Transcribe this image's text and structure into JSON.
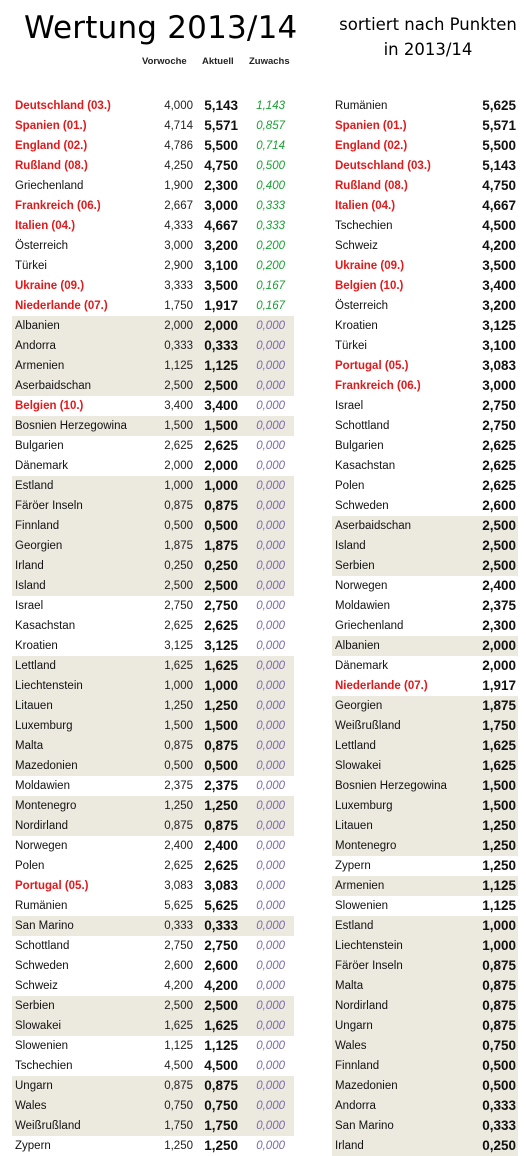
{
  "title": "Wertung 2013/14",
  "subtitle": "sortiert nach Punkten in 2013/14",
  "columns": {
    "vorwoche": "Vorwoche",
    "aktuell": "Aktuell",
    "zuwachs": "Zuwachs"
  },
  "left_table": [
    {
      "country": "Deutschland (03.)",
      "vorwoche": "4,000",
      "aktuell": "5,143",
      "zuwachs": "1,143",
      "red": true,
      "shade": false
    },
    {
      "country": "Spanien (01.)",
      "vorwoche": "4,714",
      "aktuell": "5,571",
      "zuwachs": "0,857",
      "red": true,
      "shade": false
    },
    {
      "country": "England (02.)",
      "vorwoche": "4,786",
      "aktuell": "5,500",
      "zuwachs": "0,714",
      "red": true,
      "shade": false
    },
    {
      "country": "Rußland (08.)",
      "vorwoche": "4,250",
      "aktuell": "4,750",
      "zuwachs": "0,500",
      "red": true,
      "shade": false
    },
    {
      "country": "Griechenland",
      "vorwoche": "1,900",
      "aktuell": "2,300",
      "zuwachs": "0,400",
      "red": false,
      "shade": false
    },
    {
      "country": "Frankreich (06.)",
      "vorwoche": "2,667",
      "aktuell": "3,000",
      "zuwachs": "0,333",
      "red": true,
      "shade": false
    },
    {
      "country": "Italien (04.)",
      "vorwoche": "4,333",
      "aktuell": "4,667",
      "zuwachs": "0,333",
      "red": true,
      "shade": false
    },
    {
      "country": "Österreich",
      "vorwoche": "3,000",
      "aktuell": "3,200",
      "zuwachs": "0,200",
      "red": false,
      "shade": false
    },
    {
      "country": "Türkei",
      "vorwoche": "2,900",
      "aktuell": "3,100",
      "zuwachs": "0,200",
      "red": false,
      "shade": false
    },
    {
      "country": "Ukraine (09.)",
      "vorwoche": "3,333",
      "aktuell": "3,500",
      "zuwachs": "0,167",
      "red": true,
      "shade": false
    },
    {
      "country": "Niederlande (07.)",
      "vorwoche": "1,750",
      "aktuell": "1,917",
      "zuwachs": "0,167",
      "red": true,
      "shade": false
    },
    {
      "country": "Albanien",
      "vorwoche": "2,000",
      "aktuell": "2,000",
      "zuwachs": "0,000",
      "red": false,
      "shade": true
    },
    {
      "country": "Andorra",
      "vorwoche": "0,333",
      "aktuell": "0,333",
      "zuwachs": "0,000",
      "red": false,
      "shade": true
    },
    {
      "country": "Armenien",
      "vorwoche": "1,125",
      "aktuell": "1,125",
      "zuwachs": "0,000",
      "red": false,
      "shade": true
    },
    {
      "country": "Aserbaidschan",
      "vorwoche": "2,500",
      "aktuell": "2,500",
      "zuwachs": "0,000",
      "red": false,
      "shade": true
    },
    {
      "country": "Belgien (10.)",
      "vorwoche": "3,400",
      "aktuell": "3,400",
      "zuwachs": "0,000",
      "red": true,
      "shade": false
    },
    {
      "country": "Bosnien Herzegowina",
      "vorwoche": "1,500",
      "aktuell": "1,500",
      "zuwachs": "0,000",
      "red": false,
      "shade": true
    },
    {
      "country": "Bulgarien",
      "vorwoche": "2,625",
      "aktuell": "2,625",
      "zuwachs": "0,000",
      "red": false,
      "shade": false
    },
    {
      "country": "Dänemark",
      "vorwoche": "2,000",
      "aktuell": "2,000",
      "zuwachs": "0,000",
      "red": false,
      "shade": false
    },
    {
      "country": "Estland",
      "vorwoche": "1,000",
      "aktuell": "1,000",
      "zuwachs": "0,000",
      "red": false,
      "shade": true
    },
    {
      "country": "Färöer Inseln",
      "vorwoche": "0,875",
      "aktuell": "0,875",
      "zuwachs": "0,000",
      "red": false,
      "shade": true
    },
    {
      "country": "Finnland",
      "vorwoche": "0,500",
      "aktuell": "0,500",
      "zuwachs": "0,000",
      "red": false,
      "shade": true
    },
    {
      "country": "Georgien",
      "vorwoche": "1,875",
      "aktuell": "1,875",
      "zuwachs": "0,000",
      "red": false,
      "shade": true
    },
    {
      "country": "Irland",
      "vorwoche": "0,250",
      "aktuell": "0,250",
      "zuwachs": "0,000",
      "red": false,
      "shade": true
    },
    {
      "country": "Island",
      "vorwoche": "2,500",
      "aktuell": "2,500",
      "zuwachs": "0,000",
      "red": false,
      "shade": true
    },
    {
      "country": "Israel",
      "vorwoche": "2,750",
      "aktuell": "2,750",
      "zuwachs": "0,000",
      "red": false,
      "shade": false
    },
    {
      "country": "Kasachstan",
      "vorwoche": "2,625",
      "aktuell": "2,625",
      "zuwachs": "0,000",
      "red": false,
      "shade": false
    },
    {
      "country": "Kroatien",
      "vorwoche": "3,125",
      "aktuell": "3,125",
      "zuwachs": "0,000",
      "red": false,
      "shade": false
    },
    {
      "country": "Lettland",
      "vorwoche": "1,625",
      "aktuell": "1,625",
      "zuwachs": "0,000",
      "red": false,
      "shade": true
    },
    {
      "country": "Liechtenstein",
      "vorwoche": "1,000",
      "aktuell": "1,000",
      "zuwachs": "0,000",
      "red": false,
      "shade": true
    },
    {
      "country": "Litauen",
      "vorwoche": "1,250",
      "aktuell": "1,250",
      "zuwachs": "0,000",
      "red": false,
      "shade": true
    },
    {
      "country": "Luxemburg",
      "vorwoche": "1,500",
      "aktuell": "1,500",
      "zuwachs": "0,000",
      "red": false,
      "shade": true
    },
    {
      "country": "Malta",
      "vorwoche": "0,875",
      "aktuell": "0,875",
      "zuwachs": "0,000",
      "red": false,
      "shade": true
    },
    {
      "country": "Mazedonien",
      "vorwoche": "0,500",
      "aktuell": "0,500",
      "zuwachs": "0,000",
      "red": false,
      "shade": true
    },
    {
      "country": "Moldawien",
      "vorwoche": "2,375",
      "aktuell": "2,375",
      "zuwachs": "0,000",
      "red": false,
      "shade": false
    },
    {
      "country": "Montenegro",
      "vorwoche": "1,250",
      "aktuell": "1,250",
      "zuwachs": "0,000",
      "red": false,
      "shade": true
    },
    {
      "country": "Nordirland",
      "vorwoche": "0,875",
      "aktuell": "0,875",
      "zuwachs": "0,000",
      "red": false,
      "shade": true
    },
    {
      "country": "Norwegen",
      "vorwoche": "2,400",
      "aktuell": "2,400",
      "zuwachs": "0,000",
      "red": false,
      "shade": false
    },
    {
      "country": "Polen",
      "vorwoche": "2,625",
      "aktuell": "2,625",
      "zuwachs": "0,000",
      "red": false,
      "shade": false
    },
    {
      "country": "Portugal (05.)",
      "vorwoche": "3,083",
      "aktuell": "3,083",
      "zuwachs": "0,000",
      "red": true,
      "shade": false
    },
    {
      "country": "Rumänien",
      "vorwoche": "5,625",
      "aktuell": "5,625",
      "zuwachs": "0,000",
      "red": false,
      "shade": false
    },
    {
      "country": "San Marino",
      "vorwoche": "0,333",
      "aktuell": "0,333",
      "zuwachs": "0,000",
      "red": false,
      "shade": true
    },
    {
      "country": "Schottland",
      "vorwoche": "2,750",
      "aktuell": "2,750",
      "zuwachs": "0,000",
      "red": false,
      "shade": false
    },
    {
      "country": "Schweden",
      "vorwoche": "2,600",
      "aktuell": "2,600",
      "zuwachs": "0,000",
      "red": false,
      "shade": false
    },
    {
      "country": "Schweiz",
      "vorwoche": "4,200",
      "aktuell": "4,200",
      "zuwachs": "0,000",
      "red": false,
      "shade": false
    },
    {
      "country": "Serbien",
      "vorwoche": "2,500",
      "aktuell": "2,500",
      "zuwachs": "0,000",
      "red": false,
      "shade": true
    },
    {
      "country": "Slowakei",
      "vorwoche": "1,625",
      "aktuell": "1,625",
      "zuwachs": "0,000",
      "red": false,
      "shade": true
    },
    {
      "country": "Slowenien",
      "vorwoche": "1,125",
      "aktuell": "1,125",
      "zuwachs": "0,000",
      "red": false,
      "shade": false
    },
    {
      "country": "Tschechien",
      "vorwoche": "4,500",
      "aktuell": "4,500",
      "zuwachs": "0,000",
      "red": false,
      "shade": false
    },
    {
      "country": "Ungarn",
      "vorwoche": "0,875",
      "aktuell": "0,875",
      "zuwachs": "0,000",
      "red": false,
      "shade": true
    },
    {
      "country": "Wales",
      "vorwoche": "0,750",
      "aktuell": "0,750",
      "zuwachs": "0,000",
      "red": false,
      "shade": true
    },
    {
      "country": "Weißrußland",
      "vorwoche": "1,750",
      "aktuell": "1,750",
      "zuwachs": "0,000",
      "red": false,
      "shade": true
    },
    {
      "country": "Zypern",
      "vorwoche": "1,250",
      "aktuell": "1,250",
      "zuwachs": "0,000",
      "red": false,
      "shade": false
    }
  ],
  "right_table": [
    {
      "country": "Rumänien",
      "points": "5,625",
      "red": false,
      "shade": false
    },
    {
      "country": "Spanien (01.)",
      "points": "5,571",
      "red": true,
      "shade": false
    },
    {
      "country": "England (02.)",
      "points": "5,500",
      "red": true,
      "shade": false
    },
    {
      "country": "Deutschland (03.)",
      "points": "5,143",
      "red": true,
      "shade": false
    },
    {
      "country": "Rußland (08.)",
      "points": "4,750",
      "red": true,
      "shade": false
    },
    {
      "country": "Italien (04.)",
      "points": "4,667",
      "red": true,
      "shade": false
    },
    {
      "country": "Tschechien",
      "points": "4,500",
      "red": false,
      "shade": false
    },
    {
      "country": "Schweiz",
      "points": "4,200",
      "red": false,
      "shade": false
    },
    {
      "country": "Ukraine (09.)",
      "points": "3,500",
      "red": true,
      "shade": false
    },
    {
      "country": "Belgien (10.)",
      "points": "3,400",
      "red": true,
      "shade": false
    },
    {
      "country": "Österreich",
      "points": "3,200",
      "red": false,
      "shade": false
    },
    {
      "country": "Kroatien",
      "points": "3,125",
      "red": false,
      "shade": false
    },
    {
      "country": "Türkei",
      "points": "3,100",
      "red": false,
      "shade": false
    },
    {
      "country": "Portugal (05.)",
      "points": "3,083",
      "red": true,
      "shade": false
    },
    {
      "country": "Frankreich (06.)",
      "points": "3,000",
      "red": true,
      "shade": false
    },
    {
      "country": "Israel",
      "points": "2,750",
      "red": false,
      "shade": false
    },
    {
      "country": "Schottland",
      "points": "2,750",
      "red": false,
      "shade": false
    },
    {
      "country": "Bulgarien",
      "points": "2,625",
      "red": false,
      "shade": false
    },
    {
      "country": "Kasachstan",
      "points": "2,625",
      "red": false,
      "shade": false
    },
    {
      "country": "Polen",
      "points": "2,625",
      "red": false,
      "shade": false
    },
    {
      "country": "Schweden",
      "points": "2,600",
      "red": false,
      "shade": false
    },
    {
      "country": "Aserbaidschan",
      "points": "2,500",
      "red": false,
      "shade": true
    },
    {
      "country": "Island",
      "points": "2,500",
      "red": false,
      "shade": true
    },
    {
      "country": "Serbien",
      "points": "2,500",
      "red": false,
      "shade": true
    },
    {
      "country": "Norwegen",
      "points": "2,400",
      "red": false,
      "shade": false
    },
    {
      "country": "Moldawien",
      "points": "2,375",
      "red": false,
      "shade": false
    },
    {
      "country": "Griechenland",
      "points": "2,300",
      "red": false,
      "shade": false
    },
    {
      "country": "Albanien",
      "points": "2,000",
      "red": false,
      "shade": true
    },
    {
      "country": "Dänemark",
      "points": "2,000",
      "red": false,
      "shade": false
    },
    {
      "country": "Niederlande (07.)",
      "points": "1,917",
      "red": true,
      "shade": false
    },
    {
      "country": "Georgien",
      "points": "1,875",
      "red": false,
      "shade": true
    },
    {
      "country": "Weißrußland",
      "points": "1,750",
      "red": false,
      "shade": true
    },
    {
      "country": "Lettland",
      "points": "1,625",
      "red": false,
      "shade": true
    },
    {
      "country": "Slowakei",
      "points": "1,625",
      "red": false,
      "shade": true
    },
    {
      "country": "Bosnien Herzegowina",
      "points": "1,500",
      "red": false,
      "shade": true
    },
    {
      "country": "Luxemburg",
      "points": "1,500",
      "red": false,
      "shade": true
    },
    {
      "country": "Litauen",
      "points": "1,250",
      "red": false,
      "shade": true
    },
    {
      "country": "Montenegro",
      "points": "1,250",
      "red": false,
      "shade": true
    },
    {
      "country": "Zypern",
      "points": "1,250",
      "red": false,
      "shade": false
    },
    {
      "country": "Armenien",
      "points": "1,125",
      "red": false,
      "shade": true
    },
    {
      "country": "Slowenien",
      "points": "1,125",
      "red": false,
      "shade": false
    },
    {
      "country": "Estland",
      "points": "1,000",
      "red": false,
      "shade": true
    },
    {
      "country": "Liechtenstein",
      "points": "1,000",
      "red": false,
      "shade": true
    },
    {
      "country": "Färöer Inseln",
      "points": "0,875",
      "red": false,
      "shade": true
    },
    {
      "country": "Malta",
      "points": "0,875",
      "red": false,
      "shade": true
    },
    {
      "country": "Nordirland",
      "points": "0,875",
      "red": false,
      "shade": true
    },
    {
      "country": "Ungarn",
      "points": "0,875",
      "red": false,
      "shade": true
    },
    {
      "country": "Wales",
      "points": "0,750",
      "red": false,
      "shade": true
    },
    {
      "country": "Finnland",
      "points": "0,500",
      "red": false,
      "shade": true
    },
    {
      "country": "Mazedonien",
      "points": "0,500",
      "red": false,
      "shade": true
    },
    {
      "country": "Andorra",
      "points": "0,333",
      "red": false,
      "shade": true
    },
    {
      "country": "San Marino",
      "points": "0,333",
      "red": false,
      "shade": true
    },
    {
      "country": "Irland",
      "points": "0,250",
      "red": false,
      "shade": true
    }
  ]
}
